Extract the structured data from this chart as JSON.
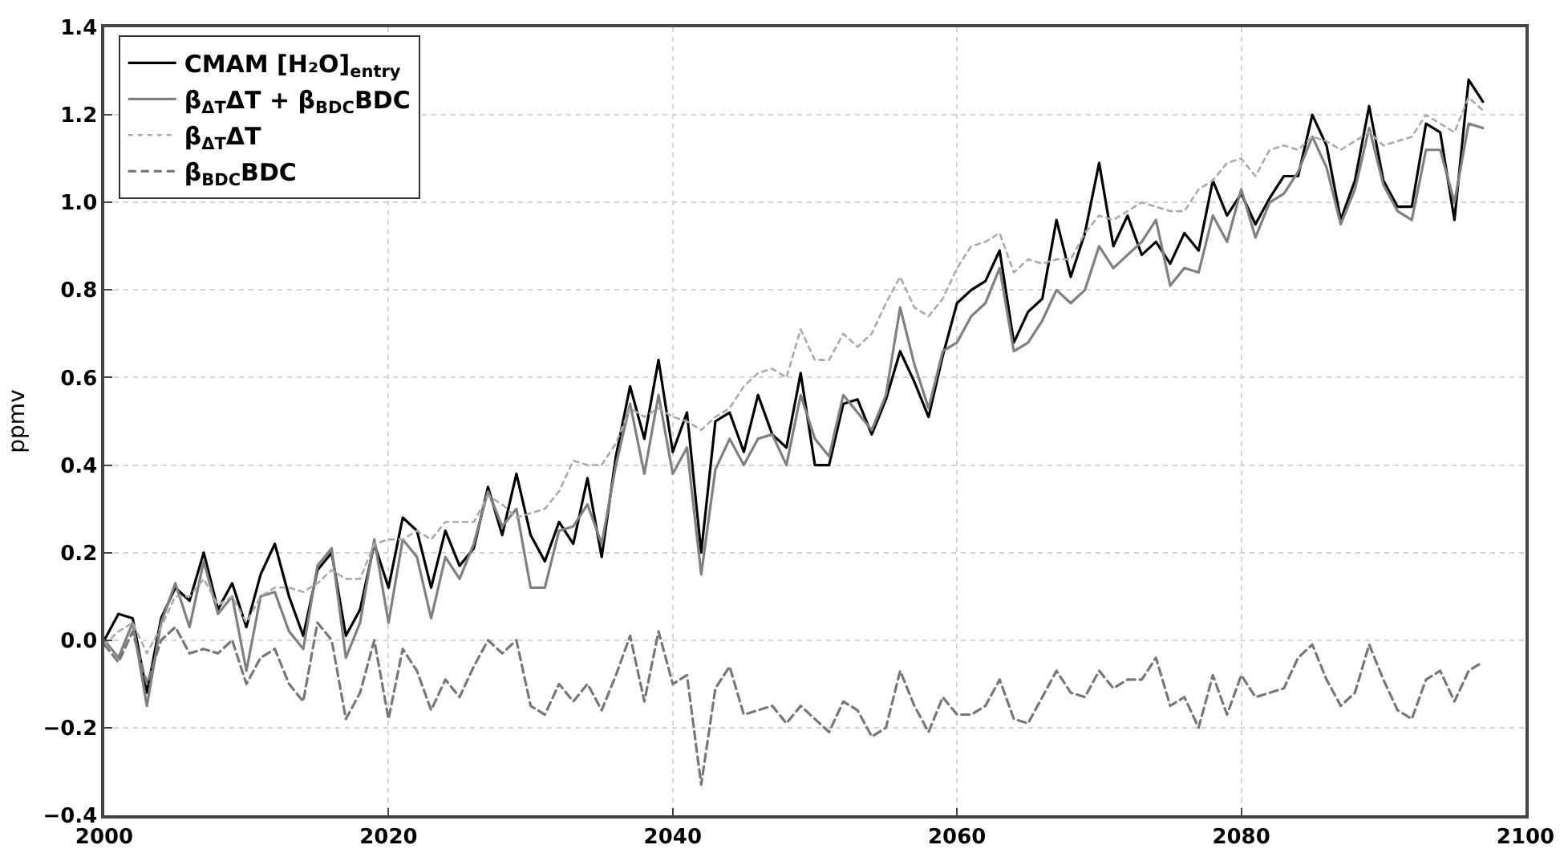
{
  "chart_data": {
    "type": "line",
    "ylabel": "ppmv",
    "x": [
      2000,
      2001,
      2002,
      2003,
      2004,
      2005,
      2006,
      2007,
      2008,
      2009,
      2010,
      2011,
      2012,
      2013,
      2014,
      2015,
      2016,
      2017,
      2018,
      2019,
      2020,
      2021,
      2022,
      2023,
      2024,
      2025,
      2026,
      2027,
      2028,
      2029,
      2030,
      2031,
      2032,
      2033,
      2034,
      2035,
      2036,
      2037,
      2038,
      2039,
      2040,
      2041,
      2042,
      2043,
      2044,
      2045,
      2046,
      2047,
      2048,
      2049,
      2050,
      2051,
      2052,
      2053,
      2054,
      2055,
      2056,
      2057,
      2058,
      2059,
      2060,
      2061,
      2062,
      2063,
      2064,
      2065,
      2066,
      2067,
      2068,
      2069,
      2070,
      2071,
      2072,
      2073,
      2074,
      2075,
      2076,
      2077,
      2078,
      2079,
      2080,
      2081,
      2082,
      2083,
      2084,
      2085,
      2086,
      2087,
      2088,
      2089,
      2090,
      2091,
      2092,
      2093,
      2094,
      2095,
      2096,
      2097
    ],
    "xlim": [
      2000,
      2100
    ],
    "xticks": [
      2000,
      2020,
      2040,
      2060,
      2080,
      2100
    ],
    "ylim": [
      -0.4,
      1.4
    ],
    "yticks": [
      {
        "value": -0.4,
        "label": "−0.4"
      },
      {
        "value": -0.2,
        "label": "−0.2"
      },
      {
        "value": 0,
        "label": "0.0"
      },
      0.2,
      0.4,
      0.6,
      0.8,
      {
        "value": 1,
        "label": "1.0"
      },
      1.2,
      1.4
    ],
    "grid": true,
    "legend": "top left",
    "marker": "none",
    "series": [
      {
        "name": "CMAM [H₂O]$_{entry}$",
        "color": "#000000",
        "line_style": "solid",
        "values": [
          0.0,
          0.06,
          0.05,
          -0.12,
          0.05,
          0.12,
          0.09,
          0.2,
          0.07,
          0.13,
          0.03,
          0.15,
          0.22,
          0.1,
          0.01,
          0.16,
          0.2,
          0.01,
          0.07,
          0.22,
          0.12,
          0.28,
          0.25,
          0.12,
          0.25,
          0.17,
          0.21,
          0.35,
          0.24,
          0.38,
          0.24,
          0.18,
          0.27,
          0.22,
          0.37,
          0.19,
          0.42,
          0.58,
          0.46,
          0.64,
          0.43,
          0.52,
          0.2,
          0.5,
          0.52,
          0.43,
          0.56,
          0.47,
          0.44,
          0.61,
          0.4,
          0.4,
          0.54,
          0.55,
          0.47,
          0.55,
          0.66,
          0.59,
          0.51,
          0.65,
          0.77,
          0.8,
          0.82,
          0.89,
          0.68,
          0.75,
          0.78,
          0.96,
          0.83,
          0.93,
          1.09,
          0.9,
          0.97,
          0.88,
          0.91,
          0.86,
          0.93,
          0.89,
          1.05,
          0.97,
          1.02,
          0.95,
          1.01,
          1.06,
          1.06,
          1.2,
          1.13,
          0.96,
          1.05,
          1.22,
          1.05,
          0.99,
          0.99,
          1.18,
          1.16,
          0.96,
          1.28,
          1.23
        ]
      },
      {
        "name": "β$_{ΔT}$ΔT + β$_{BDC}$BDC",
        "color": "#808080",
        "line_style": "solid",
        "values": [
          0.0,
          -0.04,
          0.04,
          -0.15,
          0.04,
          0.13,
          0.03,
          0.18,
          0.06,
          0.1,
          -0.07,
          0.1,
          0.11,
          0.02,
          -0.02,
          0.17,
          0.21,
          -0.04,
          0.04,
          0.23,
          0.04,
          0.23,
          0.19,
          0.05,
          0.19,
          0.14,
          0.22,
          0.34,
          0.26,
          0.3,
          0.12,
          0.12,
          0.25,
          0.26,
          0.31,
          0.22,
          0.4,
          0.54,
          0.38,
          0.56,
          0.38,
          0.44,
          0.15,
          0.39,
          0.46,
          0.4,
          0.46,
          0.47,
          0.4,
          0.56,
          0.46,
          0.42,
          0.56,
          0.52,
          0.48,
          0.56,
          0.76,
          0.63,
          0.53,
          0.66,
          0.68,
          0.74,
          0.77,
          0.85,
          0.66,
          0.68,
          0.73,
          0.8,
          0.77,
          0.8,
          0.9,
          0.85,
          0.88,
          0.91,
          0.96,
          0.81,
          0.85,
          0.84,
          0.97,
          0.91,
          1.03,
          0.92,
          1.0,
          1.02,
          1.07,
          1.15,
          1.08,
          0.95,
          1.03,
          1.17,
          1.04,
          0.98,
          0.96,
          1.12,
          1.12,
          1.0,
          1.18,
          1.17
        ]
      },
      {
        "name": "β$_{ΔT}$ΔT",
        "color": "#aaaaaa",
        "line_style": "dotted",
        "values": [
          -0.01,
          0.02,
          0.04,
          -0.03,
          0.03,
          0.1,
          0.1,
          0.14,
          0.08,
          0.1,
          0.04,
          0.1,
          0.12,
          0.12,
          0.11,
          0.13,
          0.16,
          0.14,
          0.14,
          0.22,
          0.23,
          0.23,
          0.25,
          0.23,
          0.27,
          0.27,
          0.27,
          0.33,
          0.31,
          0.28,
          0.29,
          0.3,
          0.34,
          0.41,
          0.4,
          0.4,
          0.45,
          0.53,
          0.51,
          0.53,
          0.51,
          0.5,
          0.48,
          0.51,
          0.53,
          0.58,
          0.61,
          0.62,
          0.6,
          0.71,
          0.64,
          0.64,
          0.7,
          0.67,
          0.7,
          0.77,
          0.83,
          0.76,
          0.74,
          0.78,
          0.85,
          0.9,
          0.91,
          0.93,
          0.84,
          0.87,
          0.86,
          0.87,
          0.87,
          0.93,
          0.97,
          0.96,
          0.98,
          1.0,
          0.99,
          0.98,
          0.98,
          1.03,
          1.05,
          1.09,
          1.1,
          1.06,
          1.12,
          1.13,
          1.12,
          1.15,
          1.14,
          1.12,
          1.14,
          1.16,
          1.13,
          1.14,
          1.15,
          1.2,
          1.18,
          1.16,
          1.24,
          1.21
        ]
      },
      {
        "name": "β$_{BDC}$BDC",
        "color": "#777777",
        "line_style": "dashed",
        "values": [
          -0.01,
          -0.05,
          0.02,
          -0.1,
          0.0,
          0.03,
          -0.03,
          -0.02,
          -0.03,
          0.0,
          -0.1,
          -0.04,
          -0.02,
          -0.1,
          -0.14,
          0.04,
          0.0,
          -0.18,
          -0.12,
          0.0,
          -0.18,
          -0.02,
          -0.07,
          -0.16,
          -0.09,
          -0.13,
          -0.06,
          0.0,
          -0.03,
          0.0,
          -0.15,
          -0.17,
          -0.1,
          -0.14,
          -0.1,
          -0.16,
          -0.08,
          0.01,
          -0.14,
          0.02,
          -0.1,
          -0.08,
          -0.33,
          -0.11,
          -0.06,
          -0.17,
          -0.16,
          -0.15,
          -0.19,
          -0.15,
          -0.18,
          -0.21,
          -0.14,
          -0.16,
          -0.22,
          -0.2,
          -0.07,
          -0.15,
          -0.21,
          -0.13,
          -0.17,
          -0.17,
          -0.15,
          -0.09,
          -0.18,
          -0.19,
          -0.13,
          -0.07,
          -0.12,
          -0.13,
          -0.07,
          -0.11,
          -0.09,
          -0.09,
          -0.04,
          -0.15,
          -0.13,
          -0.2,
          -0.08,
          -0.17,
          -0.08,
          -0.13,
          -0.12,
          -0.11,
          -0.04,
          -0.01,
          -0.09,
          -0.15,
          -0.12,
          -0.01,
          -0.09,
          -0.16,
          -0.18,
          -0.09,
          -0.07,
          -0.14,
          -0.07,
          -0.05
        ]
      }
    ]
  }
}
